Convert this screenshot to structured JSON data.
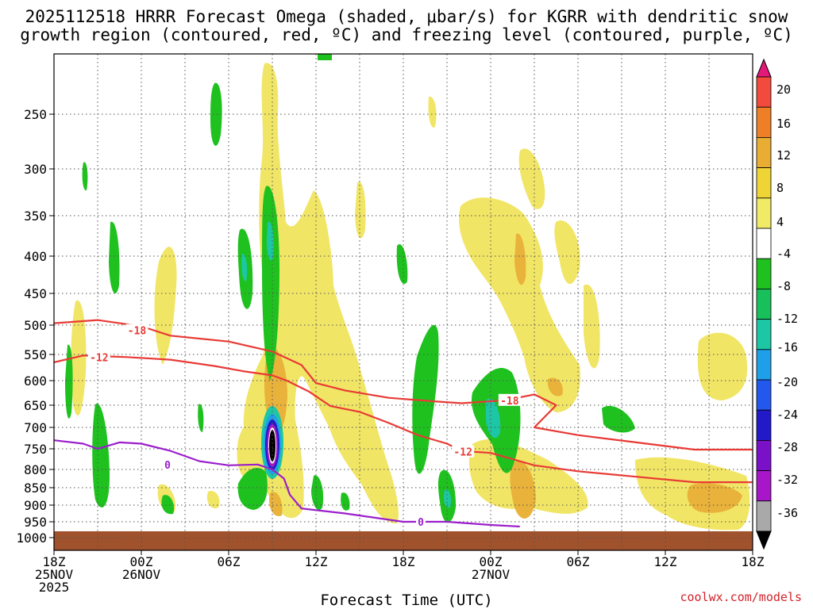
{
  "title_line1": "2025112518 HRRR Forecast Omega (shaded, μbar/s) for KGRR with dendritic snow",
  "title_line2": "growth region (contoured, red, ºC) and freezing level (contoured, purple, ºC)",
  "x_axis_title": "Forecast Time (UTC)",
  "credit": "coolwx.com/models",
  "chart_data": {
    "type": "heatmap",
    "x_ticks": [
      {
        "hour": 0,
        "label": [
          "18Z",
          "25NOV",
          "2025"
        ]
      },
      {
        "hour": 6,
        "label": [
          "00Z",
          "26NOV"
        ]
      },
      {
        "hour": 12,
        "label": [
          "06Z"
        ]
      },
      {
        "hour": 18,
        "label": [
          "12Z"
        ]
      },
      {
        "hour": 24,
        "label": [
          "18Z"
        ]
      },
      {
        "hour": 30,
        "label": [
          "00Z",
          "27NOV"
        ]
      },
      {
        "hour": 36,
        "label": [
          "06Z"
        ]
      },
      {
        "hour": 42,
        "label": [
          "12Z"
        ]
      },
      {
        "hour": 48,
        "label": [
          "18Z"
        ]
      }
    ],
    "x_range_hours": [
      0,
      48
    ],
    "y_ticks": [
      250,
      300,
      350,
      400,
      450,
      500,
      550,
      600,
      650,
      700,
      750,
      800,
      850,
      900,
      950,
      1000
    ],
    "y_range_hpa": [
      1025,
      200
    ],
    "colorbar": {
      "labels": [
        20,
        16,
        12,
        8,
        4,
        -4,
        -8,
        -12,
        -16,
        -20,
        -24,
        -28,
        -32,
        -36
      ],
      "colors": [
        "#e3187a",
        "#f24a3c",
        "#ef7f26",
        "#e8ad32",
        "#efd436",
        "#f1ea66",
        "#ffffff",
        "#1fc11f",
        "#18c05c",
        "#1dc6a5",
        "#1f9fe8",
        "#2358ee",
        "#2219c9",
        "#7a10c8",
        "#a716c9",
        "#a9a9a9",
        "#000000"
      ]
    },
    "contours": [
      {
        "name": "red-minus18",
        "label": "-18",
        "color": "#e83a35",
        "points": [
          [
            0,
            497
          ],
          [
            3,
            492
          ],
          [
            6,
            502
          ],
          [
            8,
            518
          ],
          [
            12,
            528
          ],
          [
            15,
            545
          ],
          [
            17,
            570
          ],
          [
            18,
            605
          ],
          [
            20,
            620
          ],
          [
            23,
            635
          ],
          [
            26,
            642
          ],
          [
            28,
            646
          ],
          [
            31,
            640
          ],
          [
            33,
            628
          ],
          [
            34.5,
            650
          ],
          [
            33,
            700
          ],
          [
            36,
            718
          ],
          [
            40,
            735
          ],
          [
            44,
            752
          ],
          [
            48,
            752
          ]
        ]
      },
      {
        "name": "red-minus12",
        "label": "-12",
        "color": "#e83a35",
        "points": [
          [
            0,
            565
          ],
          [
            2,
            552
          ],
          [
            5,
            555
          ],
          [
            8,
            560
          ],
          [
            11,
            572
          ],
          [
            13,
            582
          ],
          [
            15,
            590
          ],
          [
            16,
            600
          ],
          [
            17.5,
            622
          ],
          [
            19,
            652
          ],
          [
            21,
            665
          ],
          [
            23,
            690
          ],
          [
            25,
            718
          ],
          [
            27,
            738
          ],
          [
            28,
            755
          ],
          [
            30,
            760
          ],
          [
            33,
            790
          ],
          [
            36,
            805
          ],
          [
            40,
            820
          ],
          [
            44,
            835
          ],
          [
            48,
            835
          ]
        ]
      },
      {
        "name": "purple-0",
        "label": "0",
        "color": "#9b1fcb",
        "points": [
          [
            0,
            730
          ],
          [
            2,
            738
          ],
          [
            3,
            750
          ],
          [
            4.5,
            735
          ],
          [
            6,
            738
          ],
          [
            8,
            755
          ],
          [
            10,
            780
          ],
          [
            12,
            790
          ],
          [
            14,
            788
          ],
          [
            15,
            800
          ],
          [
            15.8,
            825
          ],
          [
            16.2,
            870
          ],
          [
            17,
            910
          ],
          [
            20,
            925
          ],
          [
            24,
            950
          ],
          [
            27,
            950
          ],
          [
            30,
            960
          ],
          [
            32,
            965
          ]
        ]
      }
    ]
  }
}
